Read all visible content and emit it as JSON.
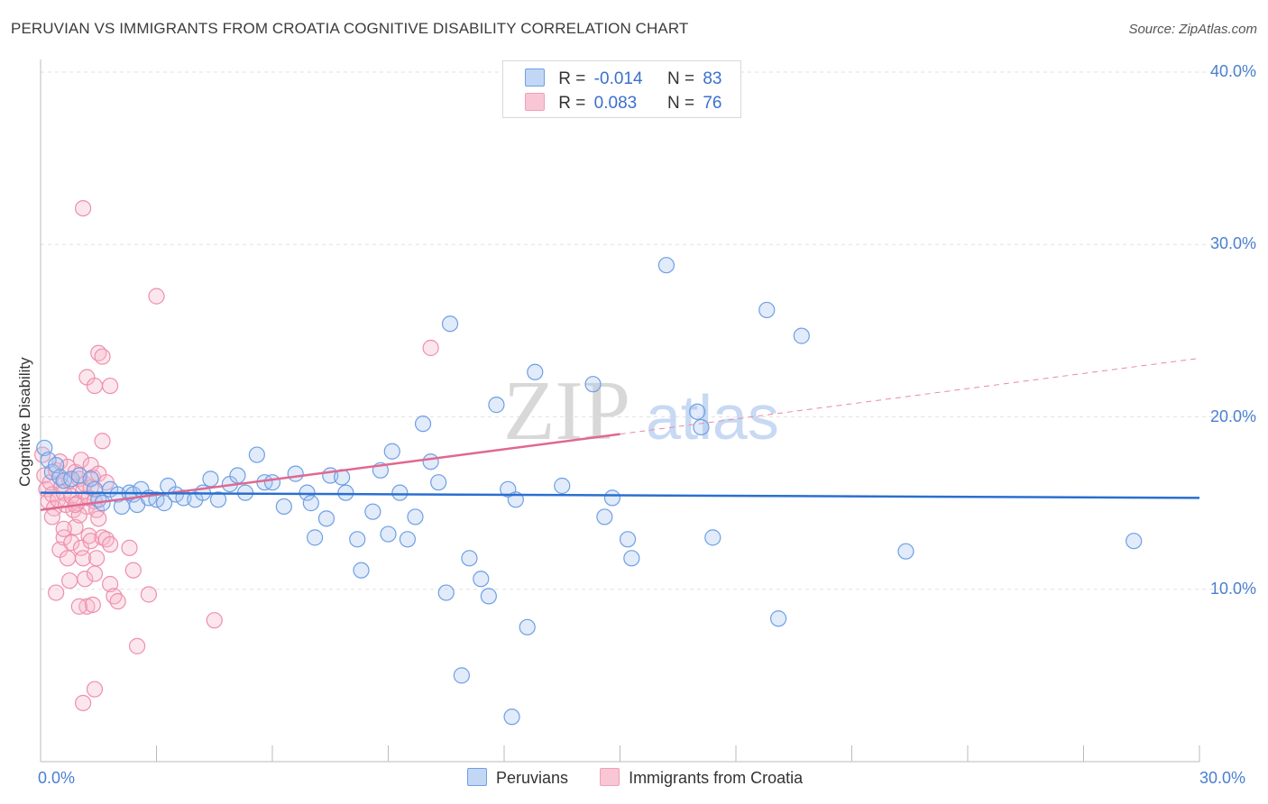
{
  "title": "PERUVIAN VS IMMIGRANTS FROM CROATIA COGNITIVE DISABILITY CORRELATION CHART",
  "source": "Source: ZipAtlas.com",
  "watermark": {
    "part1": "ZIP",
    "part2": "atlas"
  },
  "legend_top": {
    "rows": [
      {
        "r_label": "R =",
        "r_value": "-0.014",
        "n_label": "N =",
        "n_value": "83"
      },
      {
        "r_label": "R =",
        "r_value": "0.083",
        "n_label": "N =",
        "n_value": "76"
      }
    ]
  },
  "legend_bottom": {
    "items": [
      "Peruvians",
      "Immigrants from Croatia"
    ]
  },
  "chart_data": {
    "type": "scatter",
    "title": "PERUVIAN VS IMMIGRANTS FROM CROATIA COGNITIVE DISABILITY CORRELATION CHART",
    "xlabel": "",
    "ylabel": "Cognitive Disability",
    "xlim": [
      0,
      30
    ],
    "ylim": [
      0,
      40
    ],
    "x_tick_labels": [
      "0.0%",
      "30.0%"
    ],
    "y_ticks": [
      10,
      20,
      30,
      40
    ],
    "y_tick_labels": [
      "10.0%",
      "20.0%",
      "30.0%",
      "40.0%"
    ],
    "colors": {
      "peruvians": "#6e9fe4",
      "croatia": "#f0a0b8",
      "peru_line": "#2a6fd0",
      "croatia_line": "#e06890"
    },
    "series": [
      {
        "name": "Peruvians",
        "r": -0.014,
        "n": 83,
        "trend": {
          "x": [
            0,
            30
          ],
          "y": [
            15.6,
            15.3
          ]
        },
        "points": [
          [
            0.1,
            18.2
          ],
          [
            0.2,
            17.5
          ],
          [
            0.3,
            16.8
          ],
          [
            0.4,
            17.2
          ],
          [
            0.5,
            16.5
          ],
          [
            0.6,
            16.3
          ],
          [
            0.8,
            16.4
          ],
          [
            1.0,
            16.6
          ],
          [
            1.3,
            16.4
          ],
          [
            1.4,
            15.8
          ],
          [
            1.5,
            15.2
          ],
          [
            1.6,
            15.0
          ],
          [
            1.8,
            15.8
          ],
          [
            2.0,
            15.5
          ],
          [
            2.1,
            14.8
          ],
          [
            2.3,
            15.6
          ],
          [
            2.4,
            15.5
          ],
          [
            2.5,
            14.9
          ],
          [
            2.6,
            15.8
          ],
          [
            2.8,
            15.3
          ],
          [
            3.0,
            15.2
          ],
          [
            3.2,
            15.0
          ],
          [
            3.3,
            16.0
          ],
          [
            3.5,
            15.5
          ],
          [
            3.7,
            15.3
          ],
          [
            4.0,
            15.2
          ],
          [
            4.2,
            15.6
          ],
          [
            4.4,
            16.4
          ],
          [
            4.6,
            15.2
          ],
          [
            4.9,
            16.1
          ],
          [
            5.1,
            16.6
          ],
          [
            5.3,
            15.6
          ],
          [
            5.6,
            17.8
          ],
          [
            5.8,
            16.2
          ],
          [
            6.0,
            16.2
          ],
          [
            6.3,
            14.8
          ],
          [
            6.6,
            16.7
          ],
          [
            6.9,
            15.6
          ],
          [
            7.0,
            15.0
          ],
          [
            7.1,
            13.0
          ],
          [
            7.4,
            14.1
          ],
          [
            7.5,
            16.6
          ],
          [
            7.8,
            16.5
          ],
          [
            7.9,
            15.6
          ],
          [
            8.2,
            12.9
          ],
          [
            8.3,
            11.1
          ],
          [
            8.6,
            14.5
          ],
          [
            8.8,
            16.9
          ],
          [
            9.0,
            13.2
          ],
          [
            9.1,
            18.0
          ],
          [
            9.3,
            15.6
          ],
          [
            9.5,
            12.9
          ],
          [
            9.7,
            14.2
          ],
          [
            9.9,
            19.6
          ],
          [
            10.1,
            17.4
          ],
          [
            10.3,
            16.2
          ],
          [
            10.5,
            9.8
          ],
          [
            10.6,
            25.4
          ],
          [
            10.9,
            5.0
          ],
          [
            11.1,
            11.8
          ],
          [
            11.4,
            10.6
          ],
          [
            11.6,
            9.6
          ],
          [
            11.8,
            20.7
          ],
          [
            12.1,
            15.8
          ],
          [
            12.2,
            2.6
          ],
          [
            12.3,
            15.2
          ],
          [
            12.6,
            7.8
          ],
          [
            12.8,
            22.6
          ],
          [
            13.5,
            16.0
          ],
          [
            14.3,
            21.9
          ],
          [
            14.6,
            14.2
          ],
          [
            14.8,
            15.3
          ],
          [
            15.2,
            12.9
          ],
          [
            15.3,
            11.8
          ],
          [
            16.2,
            28.8
          ],
          [
            17.0,
            20.3
          ],
          [
            17.1,
            19.4
          ],
          [
            17.4,
            13.0
          ],
          [
            18.8,
            26.2
          ],
          [
            19.1,
            8.3
          ],
          [
            19.7,
            24.7
          ],
          [
            22.4,
            12.2
          ],
          [
            28.3,
            12.8
          ]
        ]
      },
      {
        "name": "Immigrants from Croatia",
        "r": 0.083,
        "n": 76,
        "trend": {
          "x": [
            0,
            15
          ],
          "y": [
            14.6,
            19.0
          ]
        },
        "trend_dashed": {
          "x": [
            15,
            30
          ],
          "y": [
            19.0,
            23.4
          ]
        },
        "points": [
          [
            0.05,
            17.8
          ],
          [
            0.1,
            16.6
          ],
          [
            0.15,
            15.8
          ],
          [
            0.2,
            15.1
          ],
          [
            0.25,
            16.2
          ],
          [
            0.3,
            15.5
          ],
          [
            0.35,
            14.7
          ],
          [
            0.4,
            16.9
          ],
          [
            0.45,
            15.2
          ],
          [
            0.5,
            17.4
          ],
          [
            0.55,
            16.0
          ],
          [
            0.6,
            15.6
          ],
          [
            0.65,
            14.9
          ],
          [
            0.7,
            17.1
          ],
          [
            0.75,
            16.3
          ],
          [
            0.8,
            15.4
          ],
          [
            0.85,
            14.6
          ],
          [
            0.9,
            16.8
          ],
          [
            0.95,
            15.0
          ],
          [
            1.0,
            16.4
          ],
          [
            1.05,
            17.5
          ],
          [
            1.1,
            15.7
          ],
          [
            1.15,
            16.1
          ],
          [
            1.2,
            14.8
          ],
          [
            1.25,
            15.3
          ],
          [
            1.3,
            17.2
          ],
          [
            1.35,
            16.5
          ],
          [
            1.4,
            15.1
          ],
          [
            1.45,
            14.6
          ],
          [
            1.5,
            16.7
          ],
          [
            0.5,
            12.3
          ],
          [
            0.6,
            13.0
          ],
          [
            0.7,
            11.8
          ],
          [
            0.75,
            10.5
          ],
          [
            0.8,
            12.7
          ],
          [
            0.9,
            13.6
          ],
          [
            1.0,
            14.3
          ],
          [
            1.05,
            12.4
          ],
          [
            1.1,
            11.8
          ],
          [
            1.15,
            10.6
          ],
          [
            1.2,
            9.0
          ],
          [
            1.25,
            13.1
          ],
          [
            1.3,
            12.8
          ],
          [
            1.35,
            9.1
          ],
          [
            1.4,
            10.9
          ],
          [
            1.45,
            11.8
          ],
          [
            1.5,
            14.1
          ],
          [
            1.6,
            13.0
          ],
          [
            1.7,
            12.9
          ],
          [
            1.8,
            10.3
          ],
          [
            1.9,
            9.6
          ],
          [
            2.0,
            9.3
          ],
          [
            0.4,
            9.8
          ],
          [
            1.0,
            9.0
          ],
          [
            1.1,
            3.4
          ],
          [
            1.4,
            4.2
          ],
          [
            1.8,
            12.6
          ],
          [
            2.3,
            12.4
          ],
          [
            2.4,
            11.1
          ],
          [
            2.5,
            6.7
          ],
          [
            2.8,
            9.7
          ],
          [
            3.0,
            27.0
          ],
          [
            4.5,
            8.2
          ],
          [
            1.1,
            32.1
          ],
          [
            1.5,
            23.7
          ],
          [
            1.6,
            23.5
          ],
          [
            1.2,
            22.3
          ],
          [
            1.4,
            21.8
          ],
          [
            1.8,
            21.8
          ],
          [
            1.6,
            18.6
          ],
          [
            10.1,
            24.0
          ],
          [
            0.3,
            14.2
          ],
          [
            0.6,
            13.5
          ],
          [
            0.9,
            14.9
          ],
          [
            1.3,
            15.9
          ],
          [
            1.7,
            16.2
          ]
        ]
      }
    ]
  }
}
